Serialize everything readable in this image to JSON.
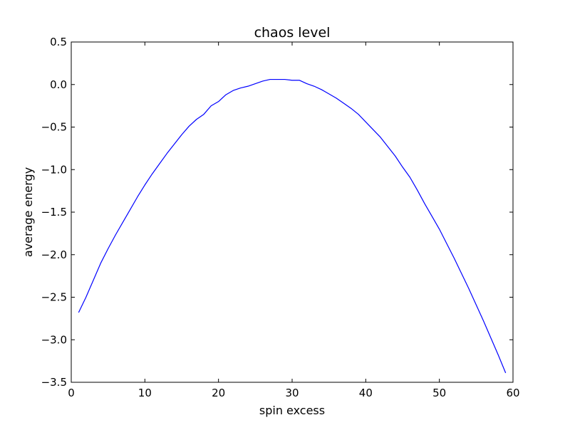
{
  "chart_data": {
    "type": "line",
    "title": "chaos level",
    "xlabel": "spin excess",
    "ylabel": "average energy",
    "xlim": [
      0,
      60
    ],
    "ylim": [
      -3.5,
      0.5
    ],
    "xticks": [
      0,
      10,
      20,
      30,
      40,
      50,
      60
    ],
    "yticks": [
      0.5,
      0.0,
      -0.5,
      -1.0,
      -1.5,
      -2.0,
      -2.5,
      -3.0,
      -3.5
    ],
    "xtick_labels": [
      "0",
      "10",
      "20",
      "30",
      "40",
      "50",
      "60"
    ],
    "ytick_labels": [
      "0.5",
      "0.0",
      "−0.5",
      "−1.0",
      "−1.5",
      "−2.0",
      "−2.5",
      "−3.0",
      "−3.5"
    ],
    "grid": false,
    "series": [
      {
        "color": "#0000ff",
        "x": [
          1,
          2,
          3,
          4,
          5,
          6,
          7,
          8,
          9,
          10,
          11,
          12,
          13,
          14,
          15,
          16,
          17,
          18,
          19,
          20,
          21,
          22,
          23,
          24,
          25,
          26,
          27,
          28,
          29,
          30,
          31,
          32,
          33,
          34,
          35,
          36,
          37,
          38,
          39,
          40,
          41,
          42,
          43,
          44,
          45,
          46,
          47,
          48,
          49,
          50,
          51,
          52,
          53,
          54,
          55,
          56,
          57,
          58,
          59
        ],
        "y": [
          -2.68,
          -2.5,
          -2.3,
          -2.1,
          -1.93,
          -1.77,
          -1.62,
          -1.47,
          -1.32,
          -1.18,
          -1.05,
          -0.93,
          -0.81,
          -0.7,
          -0.59,
          -0.49,
          -0.41,
          -0.35,
          -0.25,
          -0.2,
          -0.12,
          -0.07,
          -0.04,
          -0.02,
          0.01,
          0.04,
          0.06,
          0.06,
          0.06,
          0.05,
          0.05,
          0.01,
          -0.02,
          -0.06,
          -0.11,
          -0.16,
          -0.22,
          -0.28,
          -0.35,
          -0.44,
          -0.53,
          -0.62,
          -0.73,
          -0.84,
          -0.97,
          -1.09,
          -1.24,
          -1.4,
          -1.55,
          -1.7,
          -1.87,
          -2.04,
          -2.22,
          -2.4,
          -2.59,
          -2.78,
          -2.98,
          -3.18,
          -3.39
        ]
      }
    ]
  }
}
